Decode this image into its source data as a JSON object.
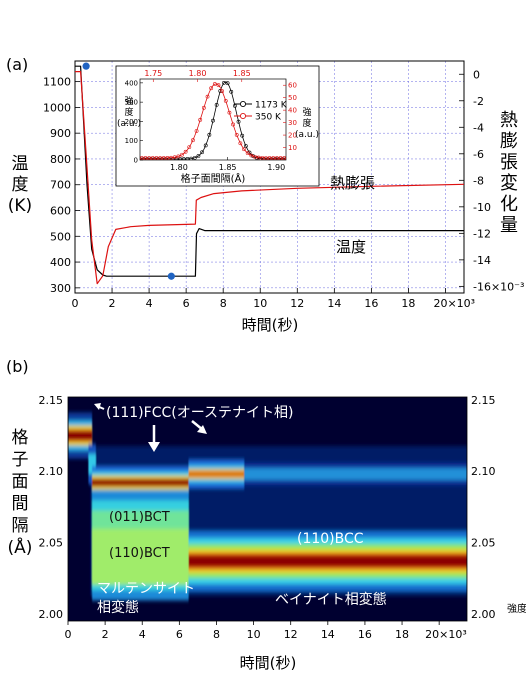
{
  "chart_data": [
    {
      "panel": "(a)",
      "type": "line",
      "xlabel": "時間(秒)",
      "ylabel_left": "温度(K)",
      "ylabel_right": "熱膨張変化量",
      "x_ticks": [
        "0",
        "2",
        "4",
        "6",
        "8",
        "10",
        "12",
        "14",
        "16",
        "18",
        "20×10³"
      ],
      "y_left_ticks": [
        "300",
        "400",
        "500",
        "600",
        "700",
        "800",
        "900",
        "1000",
        "1100"
      ],
      "y_right_ticks": [
        "0",
        "-2",
        "-4",
        "-6",
        "-8",
        "-10",
        "-12",
        "-14",
        "-16×10⁻³"
      ],
      "xlim": [
        0,
        21000
      ],
      "ylim_left": [
        280,
        1180
      ],
      "ylim_right": [
        -16.5,
        1
      ],
      "grid": true,
      "series": [
        {
          "name": "温度",
          "axis": "left",
          "color": "#000000",
          "x": [
            0,
            300,
            650,
            900,
            1200,
            1500,
            1700,
            2000,
            3000,
            6500,
            6560,
            6700,
            7000,
            10000,
            21000
          ],
          "y": [
            1160,
            1160,
            700,
            450,
            370,
            350,
            345,
            345,
            345,
            345,
            510,
            530,
            522,
            522,
            522
          ]
        },
        {
          "name": "熱膨張",
          "axis": "right",
          "color": "#dd1111",
          "x": [
            0,
            300,
            600,
            900,
            1200,
            1500,
            1800,
            2200,
            3000,
            4000,
            6500,
            6550,
            6800,
            7500,
            9000,
            12000,
            16000,
            21000
          ],
          "y": [
            0.2,
            0.2,
            -6,
            -12.5,
            -15.8,
            -15.2,
            -13.0,
            -11.7,
            -11.5,
            -11.4,
            -11.3,
            -9.5,
            -9.3,
            -9.0,
            -8.8,
            -8.6,
            -8.45,
            -8.3
          ]
        }
      ],
      "markers": [
        {
          "x": 600,
          "y": 1160
        },
        {
          "x": 5200,
          "y": 345
        }
      ],
      "annotations": [
        "熱膨張",
        "温度"
      ],
      "inset": {
        "type": "line",
        "xlabel": "格子面間隔(Å)",
        "ylabel_left": "強度(a.u.)",
        "ylabel_right": "強度(a.u.)",
        "x_ticks_bottom": [
          "1.80",
          "1.85",
          "1.90"
        ],
        "x_ticks_top": [
          "1.75",
          "1.80",
          "1.85"
        ],
        "y_left_ticks": [
          "0",
          "100",
          "200",
          "300",
          "400"
        ],
        "y_right_ticks": [
          "10",
          "20",
          "30",
          "40",
          "50",
          "60"
        ],
        "xlim": [
          1.76,
          1.91
        ],
        "ylim_left": [
          0,
          420
        ],
        "ylim_right": [
          0,
          65
        ],
        "series": [
          {
            "name": "1173 K",
            "color": "#000000",
            "peak": 1.848,
            "width": 0.011,
            "height": 400,
            "base": 5
          },
          {
            "name": "350 K",
            "color": "#dd1111",
            "peak": 1.838,
            "width": 0.014,
            "height": 385,
            "base": 10
          }
        ]
      }
    },
    {
      "panel": "(b)",
      "type": "heatmap",
      "xlabel": "時間(秒)",
      "ylabel": "格子面間隔(Å)",
      "ylabel_right": "強度",
      "x_ticks": [
        "0",
        "2",
        "4",
        "6",
        "8",
        "10",
        "12",
        "14",
        "16",
        "18",
        "20×10³"
      ],
      "y_ticks": [
        "2.00",
        "2.05",
        "2.10",
        "2.15"
      ],
      "xlim": [
        0,
        21500
      ],
      "ylim": [
        1.995,
        2.152
      ],
      "bands": [
        {
          "t0": 0,
          "t1": 1200,
          "d": 2.125,
          "note": "FCC austenite"
        },
        {
          "t0": 1200,
          "t1": 6500,
          "d": 2.092,
          "note": "FCC retained"
        },
        {
          "t0": 1200,
          "t1": 6500,
          "d": 2.04,
          "note": "BCT"
        },
        {
          "t0": 6500,
          "t1": 21500,
          "d": 2.037,
          "note": "BCC"
        }
      ],
      "annotations": [
        "(111)FCC(オーステナイト相)",
        "(011)BCT",
        "(110)BCT",
        "(110)BCC",
        "マルテンサイト",
        "相変態",
        "ベイナイト相変態"
      ]
    }
  ],
  "labels": {
    "panel_a": "(a)",
    "panel_b": "(b)",
    "a_ylabel_left": [
      "温",
      "度",
      "(K)"
    ],
    "a_ylabel_right": [
      "熱",
      "膨",
      "張",
      "変",
      "化",
      "量"
    ],
    "a_xlabel": "時間(秒)",
    "a_series_label_expansion": "熱膨張",
    "a_series_label_temp": "温度",
    "inset_ylabel_left": [
      "強",
      "度",
      "(a.u.)"
    ],
    "inset_ylabel_right": [
      "強",
      "度",
      "(a.u.)"
    ],
    "inset_xlabel": "格子面間隔(Å)",
    "inset_legend_1173": "1173 K",
    "inset_legend_350": "350 K",
    "b_ylabel": [
      "格",
      "子",
      "面",
      "間",
      "隔",
      "(Å)"
    ],
    "b_xlabel": "時間(秒)",
    "b_right_label": "強度",
    "b_fcc": "(111)FCC(オーステナイト相)",
    "b_bct011": "(011)BCT",
    "b_bct110": "(110)BCT",
    "b_bcc": "(110)BCC",
    "b_martensite_1": "マルテンサイト",
    "b_martensite_2": "相変態",
    "b_bainite": "ベイナイト相変態"
  }
}
